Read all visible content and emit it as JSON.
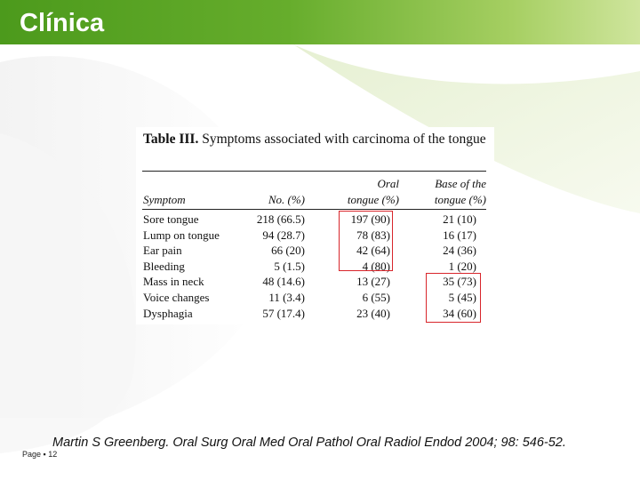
{
  "slide": {
    "title": "Clínica",
    "citation": "Martin S Greenberg. Oral Surg Oral Med Oral Pathol Oral Radiol Endod 2004; 98: 546-52.",
    "page_label": "Page",
    "page_sep": "▪",
    "page_number": "12"
  },
  "table": {
    "caption_label": "Table III.",
    "caption_text": "Symptoms associated with carcinoma of the tongue",
    "headers": {
      "symptom": "Symptom",
      "no": "No. (%)",
      "oral_line1": "Oral",
      "oral_line2": "tongue (%)",
      "base_line1": "Base of the",
      "base_line2": "tongue (%)"
    },
    "rows": [
      {
        "symptom": "Sore tongue",
        "no": "218 (66.5)",
        "oral": "197 (90)",
        "base": "21 (10)"
      },
      {
        "symptom": "Lump on tongue",
        "no": "94 (28.7)",
        "oral": "78 (83)",
        "base": "16 (17)"
      },
      {
        "symptom": "Ear pain",
        "no": "66 (20)",
        "oral": "42 (64)",
        "base": "24 (36)"
      },
      {
        "symptom": "Bleeding",
        "no": "5 (1.5)",
        "oral": "4 (80)",
        "base": "1 (20)"
      },
      {
        "symptom": "Mass in neck",
        "no": "48 (14.6)",
        "oral": "13 (27)",
        "base": "35 (73)"
      },
      {
        "symptom": "Voice changes",
        "no": "11 (3.4)",
        "oral": "6 (55)",
        "base": "5 (45)"
      },
      {
        "symptom": "Dysphagia",
        "no": "57 (17.4)",
        "oral": "23 (40)",
        "base": "34 (60)"
      }
    ],
    "highlight_color": "#d8262b"
  },
  "theme": {
    "title_bar_color": "#4c9a1c",
    "accent_light": "#cfe59d"
  }
}
